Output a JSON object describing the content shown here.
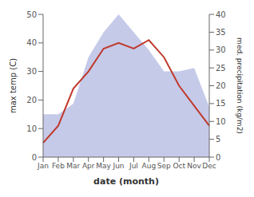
{
  "chart_data": {
    "type": "line",
    "xlabel": "date (month)",
    "ylabel": "max temp (C)",
    "y2label": "med. precipitation (kg/m2)",
    "categories": [
      "Jan",
      "Feb",
      "Mar",
      "Apr",
      "May",
      "Jun",
      "Jul",
      "Aug",
      "Sep",
      "Oct",
      "Nov",
      "Dec"
    ],
    "series": [
      {
        "type": "area",
        "axis": "y2",
        "color": "#c5cae9",
        "values": [
          12,
          12,
          15,
          28,
          35,
          40,
          35,
          30,
          24,
          24,
          25,
          14
        ]
      },
      {
        "type": "line",
        "color": "#c0392b",
        "values": [
          5,
          11,
          24,
          30,
          38,
          40,
          38,
          41,
          35,
          25,
          18,
          11
        ]
      }
    ],
    "ylim": [
      0,
      50
    ],
    "yticks": [
      0,
      10,
      20,
      30,
      40,
      50
    ],
    "y2lim": [
      0,
      40
    ],
    "y2ticks": [
      0,
      5,
      10,
      15,
      20,
      25,
      30,
      35,
      40
    ],
    "grid": false
  }
}
